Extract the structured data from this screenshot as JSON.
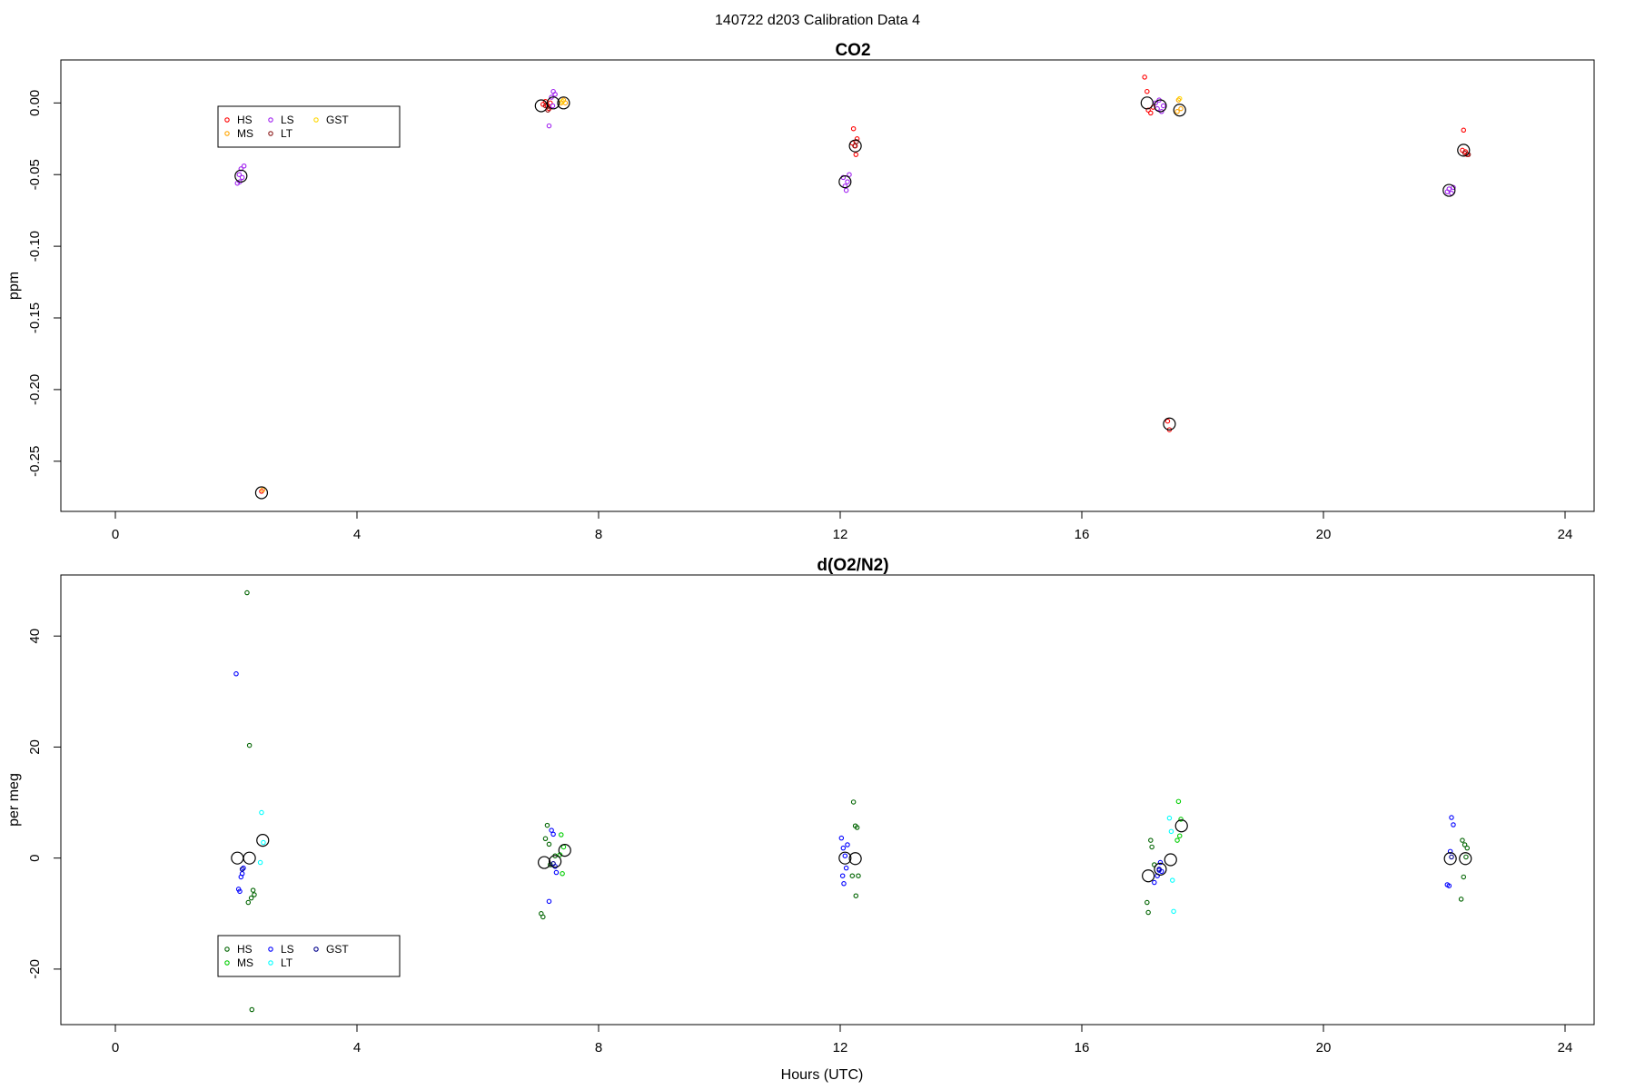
{
  "suptitle": "140722   d203   Calibration Data 4",
  "chart_data": [
    {
      "type": "scatter",
      "title": "CO2",
      "xlabel": "",
      "ylabel": "ppm",
      "xlim": [
        -1.8,
        24.8
      ],
      "ylim": [
        -0.285,
        0.03
      ],
      "xticks": [
        0,
        4,
        8,
        12,
        16,
        20,
        24
      ],
      "yticks": [
        0.0,
        -0.05,
        -0.1,
        -0.15,
        -0.2,
        -0.25
      ],
      "ytick_labels": [
        "0.00",
        "-0.05",
        "-0.10",
        "-0.15",
        "-0.20",
        "-0.25"
      ],
      "legend_position": "top-left",
      "series": [
        {
          "name": "HS",
          "color": "#ff0000",
          "points": [
            [
              2.42,
              -0.271
            ],
            [
              7.08,
              -0.001
            ],
            [
              7.12,
              0.001
            ],
            [
              7.15,
              -0.002
            ],
            [
              7.18,
              -0.004
            ],
            [
              7.2,
              0.0
            ],
            [
              12.22,
              -0.018
            ],
            [
              12.25,
              -0.03
            ],
            [
              12.28,
              -0.025
            ],
            [
              12.2,
              -0.028
            ],
            [
              12.26,
              -0.036
            ],
            [
              17.04,
              0.018
            ],
            [
              17.08,
              0.008
            ],
            [
              17.1,
              -0.005
            ],
            [
              17.14,
              -0.007
            ],
            [
              17.18,
              -0.003
            ],
            [
              17.42,
              -0.222
            ],
            [
              17.45,
              -0.228
            ],
            [
              22.32,
              -0.019
            ],
            [
              22.35,
              -0.034
            ],
            [
              22.38,
              -0.036
            ],
            [
              22.3,
              -0.033
            ]
          ]
        },
        {
          "name": "MS",
          "color": "#ffa500",
          "points": [
            [
              2.44,
              -0.27
            ],
            [
              7.38,
              0.0
            ],
            [
              7.42,
              0.002
            ],
            [
              7.45,
              0.0
            ],
            [
              17.6,
              0.002
            ],
            [
              17.64,
              -0.004
            ],
            [
              17.58,
              -0.006
            ]
          ]
        },
        {
          "name": "LS",
          "color": "#a020f0",
          "points": [
            [
              2.02,
              -0.056
            ],
            [
              2.05,
              -0.05
            ],
            [
              2.08,
              -0.046
            ],
            [
              2.1,
              -0.052
            ],
            [
              2.13,
              -0.044
            ],
            [
              2.06,
              -0.055
            ],
            [
              7.22,
              0.004
            ],
            [
              7.25,
              0.008
            ],
            [
              7.28,
              0.006
            ],
            [
              7.18,
              -0.016
            ],
            [
              7.24,
              -0.002
            ],
            [
              12.05,
              -0.052
            ],
            [
              12.08,
              -0.058
            ],
            [
              12.1,
              -0.061
            ],
            [
              12.12,
              -0.055
            ],
            [
              12.15,
              -0.05
            ],
            [
              17.22,
              0.0
            ],
            [
              17.25,
              -0.004
            ],
            [
              17.28,
              0.002
            ],
            [
              17.32,
              -0.006
            ],
            [
              17.35,
              -0.002
            ],
            [
              22.05,
              -0.062
            ],
            [
              22.08,
              -0.06
            ],
            [
              22.12,
              -0.063
            ],
            [
              22.15,
              -0.059
            ]
          ]
        },
        {
          "name": "LT",
          "color": "#8b1a1a",
          "points": [
            [
              7.12,
              -0.002
            ],
            [
              7.16,
              -0.005
            ],
            [
              12.24,
              -0.03
            ],
            [
              12.27,
              -0.027
            ],
            [
              22.34,
              -0.035
            ],
            [
              22.4,
              -0.036
            ]
          ]
        },
        {
          "name": "GST",
          "color": "#ffd700",
          "points": [
            [
              7.4,
              0.001
            ],
            [
              17.62,
              0.003
            ]
          ]
        }
      ],
      "means": [
        [
          2.08,
          -0.051
        ],
        [
          2.42,
          -0.272
        ],
        [
          7.05,
          -0.002
        ],
        [
          7.25,
          0.0
        ],
        [
          7.42,
          0.0
        ],
        [
          12.08,
          -0.055
        ],
        [
          12.25,
          -0.03
        ],
        [
          17.08,
          0.0
        ],
        [
          17.3,
          -0.002
        ],
        [
          17.45,
          -0.224
        ],
        [
          17.62,
          -0.005
        ],
        [
          22.08,
          -0.061
        ],
        [
          22.32,
          -0.033
        ]
      ]
    },
    {
      "type": "scatter",
      "title": "d(O2/N2)",
      "xlabel": "Hours (UTC)",
      "ylabel": "per meg",
      "xlim": [
        -1.8,
        24.8
      ],
      "ylim": [
        -30,
        51
      ],
      "xticks": [
        0,
        4,
        8,
        12,
        16,
        20,
        24
      ],
      "yticks": [
        -20,
        0,
        20,
        40
      ],
      "ytick_labels": [
        "-20",
        "0",
        "20",
        "40"
      ],
      "legend_position": "bottom-left",
      "series": [
        {
          "name": "HS",
          "color": "#006400",
          "points": [
            [
              2.18,
              47.8
            ],
            [
              2.22,
              20.3
            ],
            [
              2.25,
              -7.2
            ],
            [
              2.28,
              -5.8
            ],
            [
              2.3,
              -6.6
            ],
            [
              2.2,
              -8.0
            ],
            [
              2.26,
              -27.3
            ],
            [
              7.05,
              -10.0
            ],
            [
              7.08,
              -10.6
            ],
            [
              7.12,
              3.5
            ],
            [
              7.15,
              5.9
            ],
            [
              7.18,
              2.5
            ],
            [
              7.2,
              -1.2
            ],
            [
              7.28,
              0.4
            ],
            [
              12.22,
              10.1
            ],
            [
              12.25,
              5.8
            ],
            [
              12.28,
              5.5
            ],
            [
              12.2,
              -3.2
            ],
            [
              12.26,
              -6.8
            ],
            [
              12.3,
              -3.2
            ],
            [
              17.08,
              -8.0
            ],
            [
              17.1,
              -9.8
            ],
            [
              17.14,
              3.2
            ],
            [
              17.16,
              2.0
            ],
            [
              17.2,
              -1.2
            ],
            [
              22.3,
              3.2
            ],
            [
              22.34,
              2.4
            ],
            [
              22.38,
              1.8
            ],
            [
              22.32,
              -3.4
            ],
            [
              22.28,
              -7.4
            ],
            [
              22.36,
              0.2
            ]
          ]
        },
        {
          "name": "MS",
          "color": "#00cd00",
          "points": [
            [
              7.38,
              4.2
            ],
            [
              7.42,
              2.0
            ],
            [
              7.4,
              -2.8
            ],
            [
              7.36,
              0.6
            ],
            [
              17.6,
              10.2
            ],
            [
              17.64,
              7.0
            ],
            [
              17.58,
              3.2
            ],
            [
              17.62,
              4.0
            ]
          ]
        },
        {
          "name": "LS",
          "color": "#0000ff",
          "points": [
            [
              2.0,
              33.2
            ],
            [
              2.04,
              -5.6
            ],
            [
              2.06,
              -6.0
            ],
            [
              2.1,
              -2.8
            ],
            [
              2.12,
              -1.8
            ],
            [
              2.08,
              -3.4
            ],
            [
              7.18,
              -7.8
            ],
            [
              7.22,
              5.0
            ],
            [
              7.25,
              4.3
            ],
            [
              7.28,
              -1.5
            ],
            [
              7.3,
              -2.6
            ],
            [
              12.02,
              3.6
            ],
            [
              12.05,
              1.8
            ],
            [
              12.08,
              0.4
            ],
            [
              12.1,
              -1.8
            ],
            [
              12.04,
              -3.2
            ],
            [
              12.06,
              -4.6
            ],
            [
              12.12,
              2.4
            ],
            [
              17.2,
              -4.4
            ],
            [
              17.25,
              -3.2
            ],
            [
              17.28,
              -2.2
            ],
            [
              17.3,
              -0.8
            ],
            [
              17.32,
              -2.4
            ],
            [
              22.05,
              -4.8
            ],
            [
              22.08,
              -5.0
            ],
            [
              22.12,
              7.3
            ],
            [
              22.15,
              6.0
            ],
            [
              22.1,
              1.2
            ]
          ]
        },
        {
          "name": "LT",
          "color": "#00ffff",
          "points": [
            [
              2.42,
              8.2
            ],
            [
              2.45,
              2.8
            ],
            [
              2.4,
              -0.8
            ],
            [
              17.45,
              7.2
            ],
            [
              17.48,
              4.8
            ],
            [
              17.5,
              -4.0
            ],
            [
              17.52,
              -9.6
            ]
          ]
        },
        {
          "name": "GST",
          "color": "#00008b",
          "points": [
            [
              2.1,
              -2.0
            ],
            [
              7.25,
              -1.0
            ],
            [
              17.28,
              -2.0
            ],
            [
              22.12,
              0.2
            ]
          ]
        }
      ],
      "means": [
        [
          2.02,
          0.0
        ],
        [
          2.22,
          0.0
        ],
        [
          2.44,
          3.2
        ],
        [
          7.1,
          -0.8
        ],
        [
          7.28,
          -0.6
        ],
        [
          7.44,
          1.4
        ],
        [
          12.08,
          0.0
        ],
        [
          12.25,
          -0.1
        ],
        [
          17.1,
          -3.2
        ],
        [
          17.3,
          -2.0
        ],
        [
          17.47,
          -0.3
        ],
        [
          17.65,
          5.8
        ],
        [
          22.1,
          -0.1
        ],
        [
          22.35,
          -0.1
        ]
      ]
    }
  ]
}
